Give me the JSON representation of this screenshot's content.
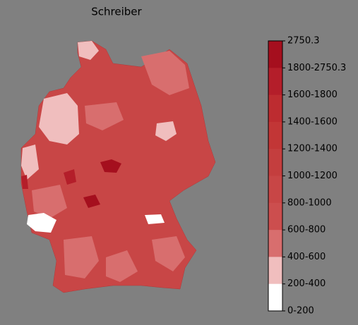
{
  "title": "Schreiber",
  "colorbar": {
    "labels": [
      "2750.3",
      "1800-2750.3",
      "1600-1800",
      "1400-1600",
      "1200-1400",
      "1000-1200",
      "800-1000",
      "600-800",
      "400-600",
      "200-400",
      "0-200"
    ],
    "colors": [
      "#a50f1e",
      "#b41e2a",
      "#bd2c30",
      "#c23636",
      "#c43e3e",
      "#c84646",
      "#cc4e4e",
      "#d86e6e",
      "#f0bebe",
      "#ffffff"
    ]
  }
}
